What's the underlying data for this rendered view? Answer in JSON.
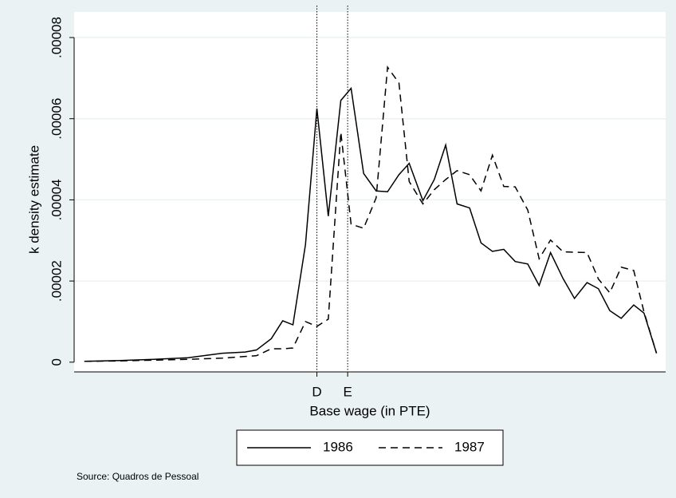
{
  "chart_data": {
    "type": "line",
    "xlabel": "Base wage (in PTE)",
    "ylabel": "k density estimate",
    "note": "Source: Quadros de Pessoal",
    "x": [
      0,
      3.1,
      6.1,
      9.1,
      12.1,
      14.1,
      15.1,
      16.4,
      17.4,
      18.3,
      19.4,
      20.4,
      21.4,
      22.5,
      23.4,
      24.5,
      25.6,
      26.6,
      27.6,
      28.5,
      29.7,
      30.7,
      31.7,
      32.7,
      33.8,
      34.8,
      35.8,
      36.8,
      37.8,
      38.9,
      39.9,
      40.9,
      42,
      43,
      44.1,
      45.1,
      46.1,
      47.1,
      48.2,
      49.1,
      50.2
    ],
    "series": [
      {
        "name": "1986",
        "color": "#000000",
        "dash": "solid",
        "values": [
          2e-07,
          4e-07,
          7e-07,
          1.1e-06,
          2.2e-06,
          2.5e-06,
          3e-06,
          5.8e-06,
          1.02e-05,
          9.2e-06,
          2.9e-05,
          6.25e-05,
          3.6e-05,
          6.45e-05,
          6.75e-05,
          4.65e-05,
          4.22e-05,
          4.2e-05,
          4.62e-05,
          4.9e-05,
          3.98e-05,
          4.5e-05,
          5.35e-05,
          3.9e-05,
          3.8e-05,
          2.94e-05,
          2.73e-05,
          2.78e-05,
          2.48e-05,
          2.42e-05,
          1.89e-05,
          2.7e-05,
          2.06e-05,
          1.57e-05,
          1.96e-05,
          1.81e-05,
          1.27e-05,
          1.08e-05,
          1.41e-05,
          1.21e-05,
          2.2e-06
        ]
      },
      {
        "name": "1987",
        "color": "#000000",
        "dash": "dashed",
        "values": [
          2e-07,
          3e-07,
          5e-07,
          7e-07,
          1e-06,
          1.4e-06,
          1.6e-06,
          3.3e-06,
          3.3e-06,
          3.5e-06,
          1e-05,
          8.8e-06,
          1.06e-05,
          5.67e-05,
          3.4e-05,
          3.3e-05,
          4.05e-05,
          7.27e-05,
          6.88e-05,
          4.45e-05,
          3.9e-05,
          4.25e-05,
          4.5e-05,
          4.72e-05,
          4.62e-05,
          4.22e-05,
          5.1e-05,
          4.33e-05,
          4.32e-05,
          3.75e-05,
          2.55e-05,
          3.01e-05,
          2.72e-05,
          2.71e-05,
          2.7e-05,
          2.05e-05,
          1.71e-05,
          2.34e-05,
          2.26e-05,
          1.24e-05,
          2.2e-06
        ]
      }
    ],
    "xlines": [
      {
        "value": 20.4,
        "label": "D"
      },
      {
        "value": 23.1,
        "label": "E"
      }
    ],
    "xlim": [
      -0.9,
      51
    ],
    "ylim": [
      -2.4e-06,
      8.63e-05
    ],
    "yticks": [
      0,
      {
        "value": 2e-05,
        "label": ".00002"
      },
      {
        "value": 4e-05,
        "label": ".00004"
      },
      {
        "value": 6e-05,
        "label": ".00006"
      },
      {
        "value": 8e-05,
        "label": ".00008"
      }
    ],
    "grid": true,
    "legend": "bottom"
  }
}
